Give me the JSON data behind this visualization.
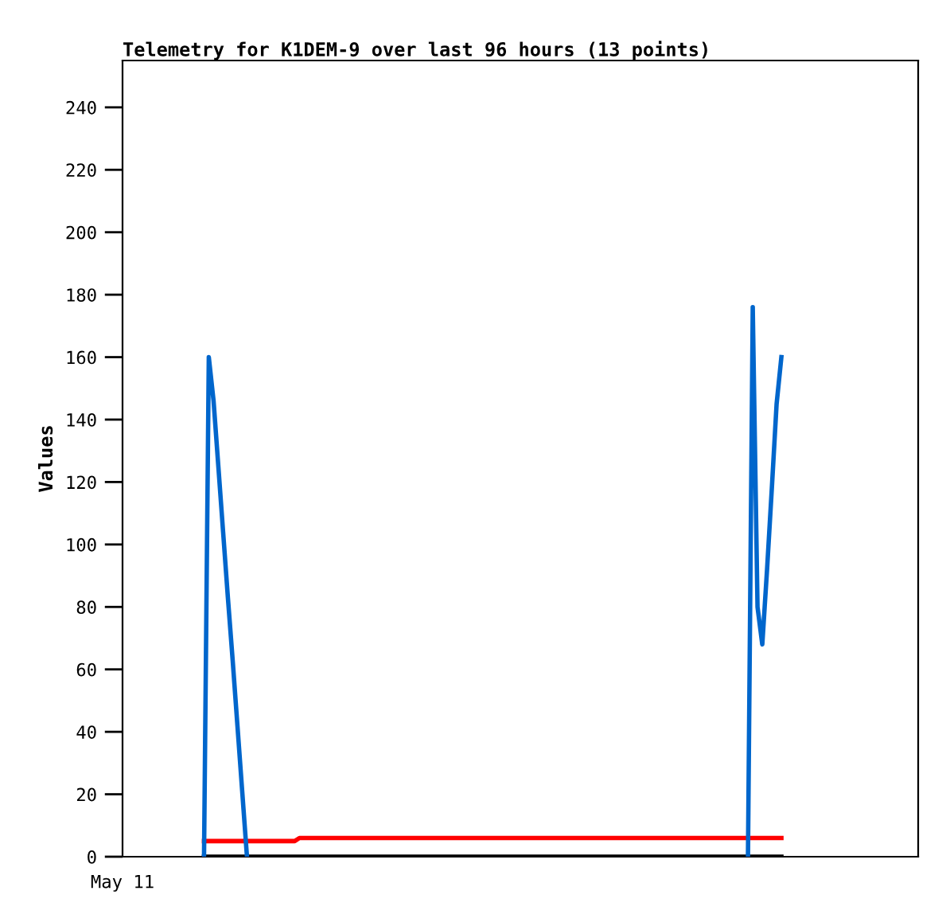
{
  "chart_data": {
    "type": "line",
    "title": "Telemetry for K1DEM-9 over last 96 hours (13 points)",
    "ylabel": "Values",
    "annotations": [
      "May 11"
    ],
    "categories": [
      null,
      null,
      null,
      null,
      null,
      null,
      null,
      null,
      null,
      null,
      null,
      null,
      null,
      null,
      null,
      null,
      null,
      null,
      null,
      null,
      null,
      null,
      null,
      null,
      null,
      null,
      null,
      null,
      null,
      null,
      null,
      null,
      null,
      null,
      null,
      null,
      null,
      null,
      null,
      null,
      null,
      null,
      null,
      null,
      null,
      null,
      null,
      null,
      null,
      null,
      null,
      null,
      null,
      null,
      null,
      null,
      null,
      null,
      null,
      null,
      null,
      null,
      null,
      null,
      null,
      null,
      null,
      null,
      null,
      null,
      null,
      null,
      null,
      null,
      null,
      null,
      null,
      null,
      null,
      null,
      null,
      null,
      null,
      null,
      null,
      null,
      null,
      null,
      null,
      null,
      null,
      null,
      null,
      null,
      null,
      null,
      null,
      null,
      null,
      null,
      null,
      null,
      null,
      null,
      null,
      null,
      null,
      null,
      null,
      null,
      null,
      null,
      null,
      null,
      null,
      null,
      null,
      null,
      null,
      null,
      null,
      null
    ],
    "series": [
      {
        "color": "#000000",
        "values": [
          0,
          0,
          0,
          0,
          0,
          0,
          0,
          0,
          0,
          0,
          0,
          0,
          0,
          0,
          0,
          0,
          0,
          0,
          0,
          0,
          0,
          0,
          0,
          0,
          0,
          0,
          0,
          0,
          0,
          0,
          0,
          0,
          0,
          0,
          0,
          0,
          0,
          0,
          0,
          0,
          0,
          0,
          0,
          0,
          0,
          0,
          0,
          0,
          0,
          0,
          0,
          0,
          0,
          0,
          0,
          0,
          0,
          0,
          0,
          0,
          0,
          0,
          0,
          0,
          0,
          0,
          0,
          0,
          0,
          0,
          0,
          0,
          0,
          0,
          0,
          0,
          0,
          0,
          0,
          0,
          0,
          0,
          0,
          0,
          0,
          0,
          0,
          0,
          0,
          0,
          0,
          0,
          0,
          0,
          0,
          0,
          0,
          0,
          0,
          0,
          0,
          0,
          0,
          0,
          0,
          0,
          0,
          0,
          0,
          0,
          0,
          0,
          0,
          0,
          0,
          0,
          0,
          0,
          0,
          0,
          0,
          0
        ]
      },
      {
        "color": "#ff0000",
        "values": [
          5,
          5,
          5,
          5,
          5,
          5,
          5,
          5,
          5,
          5,
          5,
          5,
          5,
          5,
          5,
          5,
          5,
          5,
          5,
          5,
          6,
          6,
          6,
          6,
          6,
          6,
          6,
          6,
          6,
          6,
          6,
          6,
          6,
          6,
          6,
          6,
          6,
          6,
          6,
          6,
          6,
          6,
          6,
          6,
          6,
          6,
          6,
          6,
          6,
          6,
          6,
          6,
          6,
          6,
          6,
          6,
          6,
          6,
          6,
          6,
          6,
          6,
          6,
          6,
          6,
          6,
          6,
          6,
          6,
          6,
          6,
          6,
          6,
          6,
          6,
          6,
          6,
          6,
          6,
          6,
          6,
          6,
          6,
          6,
          6,
          6,
          6,
          6,
          6,
          6,
          6,
          6,
          6,
          6,
          6,
          6,
          6,
          6,
          6,
          6,
          6,
          6,
          6,
          6,
          6,
          6,
          6,
          6,
          6,
          6,
          6,
          6,
          6,
          6,
          6,
          6,
          6,
          6,
          6,
          6,
          6,
          6
        ]
      },
      {
        "color": "#0066cc",
        "values": [
          0,
          160,
          146,
          125,
          104,
          83,
          63,
          42,
          21,
          0,
          null,
          null,
          null,
          null,
          null,
          null,
          null,
          null,
          null,
          null,
          null,
          null,
          null,
          null,
          null,
          null,
          null,
          null,
          null,
          null,
          null,
          null,
          null,
          null,
          null,
          null,
          null,
          null,
          null,
          null,
          null,
          null,
          null,
          null,
          null,
          null,
          null,
          null,
          null,
          null,
          null,
          null,
          null,
          null,
          null,
          null,
          null,
          null,
          null,
          null,
          null,
          null,
          null,
          null,
          null,
          null,
          null,
          null,
          null,
          null,
          null,
          null,
          null,
          null,
          null,
          null,
          null,
          null,
          null,
          null,
          null,
          null,
          null,
          null,
          null,
          null,
          null,
          null,
          null,
          null,
          null,
          null,
          null,
          null,
          null,
          null,
          null,
          null,
          null,
          null,
          null,
          null,
          null,
          null,
          null,
          null,
          null,
          null,
          null,
          null,
          null,
          null,
          null,
          null,
          0,
          176,
          80,
          68,
          92,
          118,
          145,
          160
        ]
      }
    ],
    "ylim": [
      0,
      255
    ],
    "yticks": [
      0,
      20,
      40,
      60,
      80,
      100,
      120,
      140,
      160,
      180,
      200,
      220,
      240
    ],
    "grid": false,
    "legend": false,
    "marker": "none",
    "line_style": "solid"
  }
}
